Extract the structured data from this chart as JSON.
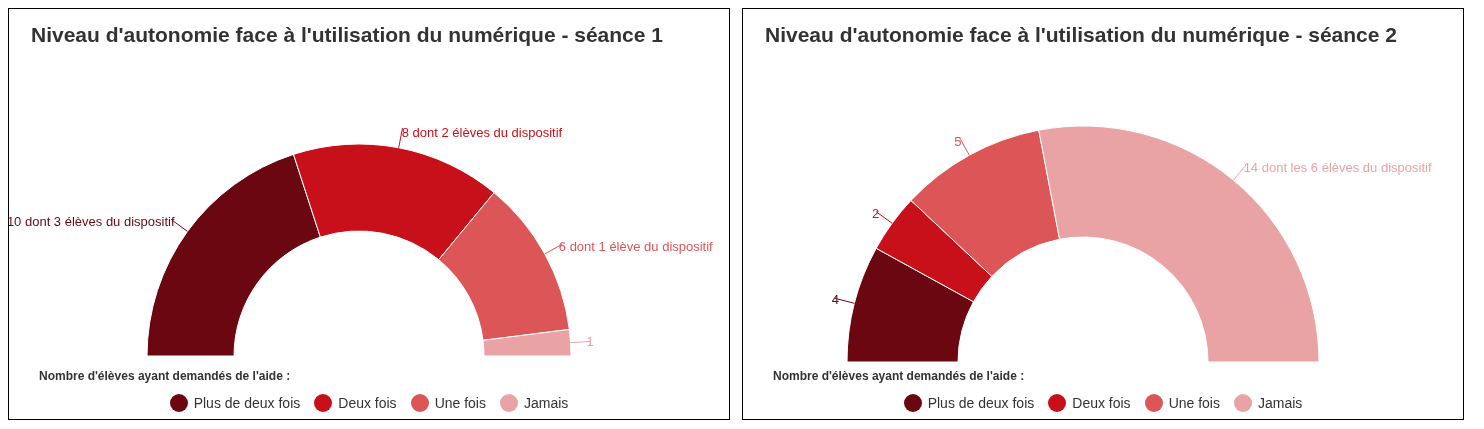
{
  "chart_data": [
    {
      "type": "donut",
      "title": "Niveau d'autonomie  face à l'utilisation du numérique - séance 1",
      "legend_title": "Nombre d'élèves ayant demandés de l'aide :",
      "legend": "bottom",
      "categories": [
        "Plus de deux fois",
        "Deux fois",
        "Une fois",
        "Jamais"
      ],
      "values": [
        10,
        8,
        6,
        1
      ],
      "value_labels": [
        "10 dont 3 élèves du dispositif",
        "8 dont 2 élèves du dispositif",
        "6 dont 1 élève du dispositif",
        "1"
      ],
      "colors": [
        "#6b0710",
        "#c8101a",
        "#dc5657",
        "#e9a3a5"
      ]
    },
    {
      "type": "donut",
      "title": "Niveau d'autonomie face à l'utilisation du numérique - séance 2",
      "legend_title": "Nombre d'élèves ayant demandés de l'aide :",
      "legend": "bottom",
      "categories": [
        "Plus de deux fois",
        "Deux fois",
        "Une fois",
        "Jamais"
      ],
      "values": [
        4,
        2,
        5,
        14
      ],
      "value_labels": [
        "4",
        "2",
        "5",
        "14 dont les 6 élèves du dispositif"
      ],
      "colors": [
        "#6b0710",
        "#c8101a",
        "#dc5657",
        "#e9a3a5"
      ]
    }
  ]
}
